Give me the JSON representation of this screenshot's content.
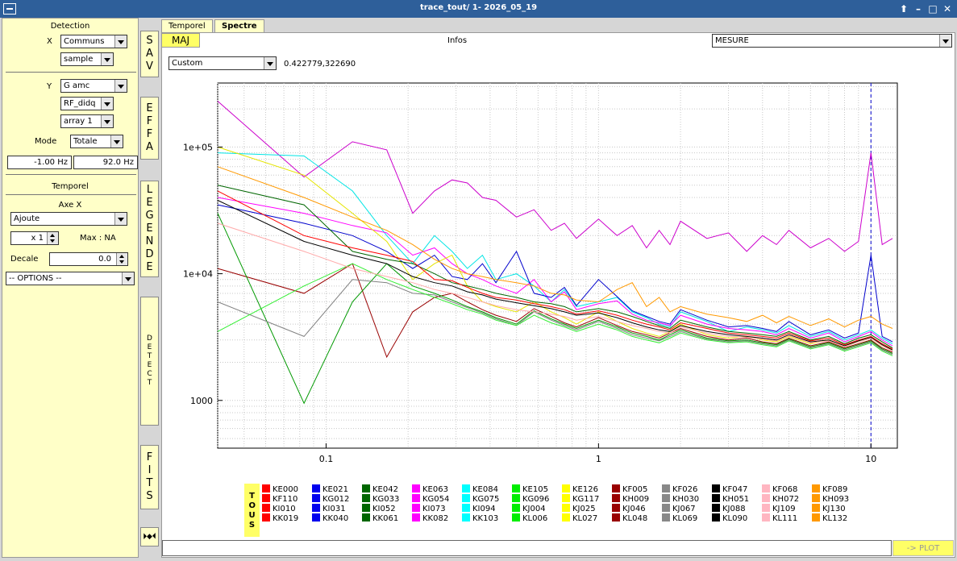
{
  "window": {
    "title": "trace_tout/ 1- 2026_05_19",
    "up_symbol": "⬆",
    "min_symbol": "–",
    "max_symbol": "□",
    "close_symbol": "✕"
  },
  "left": {
    "detection_title": "Detection",
    "x_label": "X",
    "x_combo": "Communs",
    "x_sub": "sample",
    "y_label": "Y",
    "y_combo": "G amc",
    "y_sub1": "RF_didq",
    "y_sub2": "array 1",
    "mode_label": "Mode",
    "mode_value": "Totale",
    "freq_min": "-1.00 Hz",
    "freq_max": "92.0 Hz",
    "temporel_title": "Temporel",
    "axe_x_label": "Axe X",
    "axe_x_value": "Ajoute",
    "mult_value": "x 1",
    "max_label": "Max : NA",
    "decale_label": "Decale",
    "decale_value": "0.0",
    "options_value": "-- OPTIONS --"
  },
  "side_buttons": {
    "sav": "SAV",
    "effa": "EFFA",
    "legende": "LEGENDE",
    "detect": "DETECT",
    "fits": "FITS",
    "arrows": "⏵◆⏴"
  },
  "tabs": [
    "Temporel",
    "Spectre"
  ],
  "toolbar": {
    "maj": "MAJ",
    "infos": "Infos",
    "mesure": "MESURE",
    "scale_combo": "Custom",
    "coords": "0.422779,322690"
  },
  "chart_data": {
    "type": "line",
    "x_scale": "log",
    "y_scale": "log",
    "xlim": [
      0.04,
      12.5
    ],
    "ylim": [
      420,
      320000
    ],
    "xticks": [
      {
        "v": 0.1,
        "label": "0.1"
      },
      {
        "v": 1,
        "label": "1"
      },
      {
        "v": 10,
        "label": "10"
      }
    ],
    "yticks": [
      {
        "v": 1000,
        "label": "1000"
      },
      {
        "v": 10000,
        "label": "1e+04"
      },
      {
        "v": 100000,
        "label": "1e+05"
      }
    ],
    "grid": true,
    "marker_line_x": 10.0,
    "x": [
      0.04,
      0.083,
      0.125,
      0.167,
      0.208,
      0.25,
      0.29,
      0.33,
      0.375,
      0.42,
      0.5,
      0.58,
      0.67,
      0.75,
      0.83,
      1.0,
      1.17,
      1.33,
      1.5,
      1.67,
      1.83,
      2.0,
      2.5,
      3.0,
      3.5,
      4.0,
      4.5,
      5.0,
      6.0,
      7.0,
      8.0,
      9.0,
      10.0,
      11.0,
      12.0
    ],
    "series": [
      {
        "name": "KE063",
        "color": "#cc00cc",
        "values": [
          230000,
          58000,
          110000,
          95000,
          30000,
          45000,
          55000,
          52000,
          40000,
          38000,
          28000,
          32000,
          22000,
          25000,
          19000,
          27000,
          20000,
          24000,
          16000,
          22000,
          17000,
          26000,
          19000,
          21000,
          15000,
          20000,
          17000,
          22000,
          16000,
          19000,
          15000,
          18000,
          90000,
          17000,
          19000
        ]
      },
      {
        "name": "KE084",
        "color": "#00e5e5",
        "values": [
          90000,
          85000,
          45000,
          20000,
          12000,
          20000,
          15000,
          11000,
          14000,
          9000,
          10000,
          8000,
          6000,
          7500,
          5500,
          6000,
          6500,
          5000,
          4500,
          4000,
          3800,
          5000,
          4200,
          3500,
          3800,
          3600,
          3400,
          3900,
          3200,
          3500,
          3000,
          3300,
          3600,
          3100,
          2800
        ]
      },
      {
        "name": "KG054",
        "color": "#ff00ff",
        "values": [
          40000,
          30000,
          24000,
          21000,
          14000,
          16000,
          12000,
          10000,
          9000,
          8000,
          7000,
          9000,
          6000,
          7200,
          5200,
          5800,
          6100,
          4800,
          4300,
          4100,
          3900,
          4700,
          4000,
          3700,
          3600,
          3500,
          3300,
          3700,
          3100,
          3400,
          2900,
          3200,
          3500,
          3000,
          2700
        ]
      },
      {
        "name": "KH009",
        "color": "#990000",
        "values": [
          11000,
          7000,
          12000,
          2200,
          5000,
          6500,
          7000,
          6000,
          5200,
          4700,
          4200,
          5300,
          4600,
          4100,
          3800,
          4500,
          3900,
          3500,
          3300,
          3100,
          3400,
          3700,
          3200,
          3000,
          3100,
          2900,
          2800,
          3100,
          2700,
          2900,
          2600,
          2800,
          3000,
          2600,
          2400
        ]
      },
      {
        "name": "KJ004",
        "color": "#009900",
        "values": [
          30000,
          950,
          6000,
          12000,
          8000,
          7000,
          6200,
          5500,
          5000,
          4500,
          4000,
          5100,
          4400,
          4000,
          3700,
          4300,
          3800,
          3400,
          3200,
          3000,
          3300,
          3600,
          3100,
          2950,
          3000,
          2850,
          2750,
          3050,
          2650,
          2850,
          2550,
          2750,
          2950,
          2550,
          2350
        ]
      },
      {
        "name": "KF026",
        "color": "#808080",
        "values": [
          6000,
          3200,
          9000,
          8500,
          7000,
          6800,
          6000,
          5400,
          4900,
          4400,
          3900,
          5000,
          4300,
          3900,
          3600,
          4200,
          3700,
          3300,
          3100,
          2950,
          3200,
          3500,
          3050,
          2900,
          2950,
          2800,
          2700,
          3000,
          2600,
          2800,
          2500,
          2700,
          2900,
          2500,
          2300
        ]
      },
      {
        "name": "KK040",
        "color": "#0000cc",
        "values": [
          35000,
          25000,
          20000,
          15000,
          11000,
          14000,
          9500,
          9000,
          12000,
          8500,
          15000,
          7000,
          6500,
          7800,
          5600,
          9000,
          6600,
          5100,
          4600,
          4200,
          4000,
          5200,
          4300,
          3800,
          3900,
          3700,
          3500,
          4200,
          3300,
          3600,
          3100,
          3400,
          14000,
          3200,
          2900
        ]
      },
      {
        "name": "KJ025",
        "color": "#e5e500",
        "values": [
          100000,
          60000,
          30000,
          18000,
          9000,
          12000,
          14000,
          8000,
          6000,
          5500,
          5000,
          6000,
          5000,
          4500,
          4000,
          5000,
          4200,
          3700,
          3400,
          3200,
          3500,
          4000,
          3300,
          3100,
          3200,
          3000,
          2900,
          3200,
          2800,
          3000,
          2700,
          2900,
          3100,
          2700,
          2500
        ]
      },
      {
        "name": "KL132",
        "color": "#ff9900",
        "values": [
          70000,
          40000,
          28000,
          22000,
          17000,
          13000,
          11000,
          10000,
          9500,
          9000,
          8500,
          8000,
          7000,
          6800,
          6200,
          6000,
          7500,
          8500,
          5500,
          6500,
          5000,
          5500,
          4800,
          4500,
          4200,
          4700,
          4100,
          4600,
          3900,
          4400,
          3800,
          4300,
          4600,
          4000,
          3700
        ]
      },
      {
        "name": "KE042",
        "color": "#006600",
        "values": [
          50000,
          35000,
          15000,
          13000,
          12000,
          10000,
          8500,
          8000,
          7500,
          7000,
          6500,
          6000,
          5800,
          5500,
          5000,
          5300,
          5000,
          4600,
          4200,
          3900,
          3700,
          4300,
          3800,
          3500,
          3400,
          3300,
          3200,
          3500,
          3000,
          3200,
          2800,
          3100,
          3300,
          2900,
          2600
        ]
      },
      {
        "name": "KE000",
        "color": "#ff0000",
        "values": [
          45000,
          20000,
          16000,
          14000,
          12500,
          9000,
          8800,
          7800,
          7000,
          6500,
          6200,
          5800,
          5500,
          5200,
          4800,
          5100,
          4700,
          4300,
          4000,
          3800,
          3600,
          4100,
          3700,
          3400,
          3300,
          3200,
          3100,
          3400,
          2950,
          3100,
          2750,
          3000,
          3200,
          2800,
          2550
        ]
      },
      {
        "name": "KL090",
        "color": "#000000",
        "values": [
          38000,
          18000,
          14000,
          12000,
          9500,
          8500,
          8000,
          7200,
          6800,
          6300,
          5900,
          5600,
          5300,
          5000,
          4700,
          4900,
          4500,
          4100,
          3800,
          3600,
          3500,
          3900,
          3500,
          3300,
          3200,
          3100,
          3000,
          3300,
          2900,
          3000,
          2700,
          2950,
          3150,
          2750,
          2500
        ]
      },
      {
        "name": "KL006",
        "color": "#33ee33",
        "values": [
          3500,
          8000,
          12000,
          9000,
          7500,
          6500,
          5800,
          5200,
          4800,
          4300,
          3900,
          4700,
          4100,
          3800,
          3500,
          4000,
          3600,
          3200,
          3000,
          2850,
          3100,
          3400,
          3000,
          2850,
          2900,
          2750,
          2650,
          2950,
          2550,
          2750,
          2450,
          2650,
          2850,
          2450,
          2250
        ]
      },
      {
        "name": "KH072",
        "color": "#ffaaaa",
        "values": [
          25000,
          15000,
          11000,
          9500,
          8500,
          7500,
          7000,
          6500,
          6000,
          5600,
          5200,
          5000,
          4800,
          4600,
          4300,
          4600,
          4200,
          3900,
          3700,
          3500,
          3400,
          3800,
          3400,
          3200,
          3150,
          3050,
          2950,
          3250,
          2850,
          2950,
          2650,
          2900,
          3100,
          2700,
          2450
        ]
      }
    ]
  },
  "legend": {
    "tous": "TOUS",
    "items": [
      {
        "label": "KE000",
        "color": "#ff0000"
      },
      {
        "label": "KF110",
        "color": "#ff0000"
      },
      {
        "label": "KI010",
        "color": "#ff0000"
      },
      {
        "label": "KK019",
        "color": "#ff0000"
      },
      {
        "label": "KE021",
        "color": "#0000ee"
      },
      {
        "label": "KG012",
        "color": "#0000ee"
      },
      {
        "label": "KI031",
        "color": "#0000ee"
      },
      {
        "label": "KK040",
        "color": "#0000ee"
      },
      {
        "label": "KE042",
        "color": "#006600"
      },
      {
        "label": "KG033",
        "color": "#006600"
      },
      {
        "label": "KI052",
        "color": "#006600"
      },
      {
        "label": "KK061",
        "color": "#006600"
      },
      {
        "label": "KE063",
        "color": "#ff00ff"
      },
      {
        "label": "KG054",
        "color": "#ff00ff"
      },
      {
        "label": "KI073",
        "color": "#ff00ff"
      },
      {
        "label": "KK082",
        "color": "#ff00ff"
      },
      {
        "label": "KE084",
        "color": "#00ffff"
      },
      {
        "label": "KG075",
        "color": "#00ffff"
      },
      {
        "label": "KI094",
        "color": "#00ffff"
      },
      {
        "label": "KK103",
        "color": "#00ffff"
      },
      {
        "label": "KE105",
        "color": "#00ee00"
      },
      {
        "label": "KG096",
        "color": "#00ee00"
      },
      {
        "label": "KJ004",
        "color": "#00ee00"
      },
      {
        "label": "KL006",
        "color": "#00ee00"
      },
      {
        "label": "KE126",
        "color": "#ffff00"
      },
      {
        "label": "KG117",
        "color": "#ffff00"
      },
      {
        "label": "KJ025",
        "color": "#ffff00"
      },
      {
        "label": "KL027",
        "color": "#ffff00"
      },
      {
        "label": "KF005",
        "color": "#990000"
      },
      {
        "label": "KH009",
        "color": "#990000"
      },
      {
        "label": "KJ046",
        "color": "#990000"
      },
      {
        "label": "KL048",
        "color": "#990000"
      },
      {
        "label": "KF026",
        "color": "#888888"
      },
      {
        "label": "KH030",
        "color": "#888888"
      },
      {
        "label": "KJ067",
        "color": "#888888"
      },
      {
        "label": "KL069",
        "color": "#888888"
      },
      {
        "label": "KF047",
        "color": "#000000"
      },
      {
        "label": "KH051",
        "color": "#000000"
      },
      {
        "label": "KJ088",
        "color": "#000000"
      },
      {
        "label": "KL090",
        "color": "#000000"
      },
      {
        "label": "KF068",
        "color": "#ffb6c1"
      },
      {
        "label": "KH072",
        "color": "#ffb6c1"
      },
      {
        "label": "KJ109",
        "color": "#ffb6c1"
      },
      {
        "label": "KL111",
        "color": "#ffb6c1"
      },
      {
        "label": "KF089",
        "color": "#ff9900"
      },
      {
        "label": "KH093",
        "color": "#ff9900"
      },
      {
        "label": "KJ130",
        "color": "#ff9900"
      },
      {
        "label": "KL132",
        "color": "#ff9900"
      }
    ]
  },
  "bottom": {
    "plot_button": "-> PLOT"
  }
}
